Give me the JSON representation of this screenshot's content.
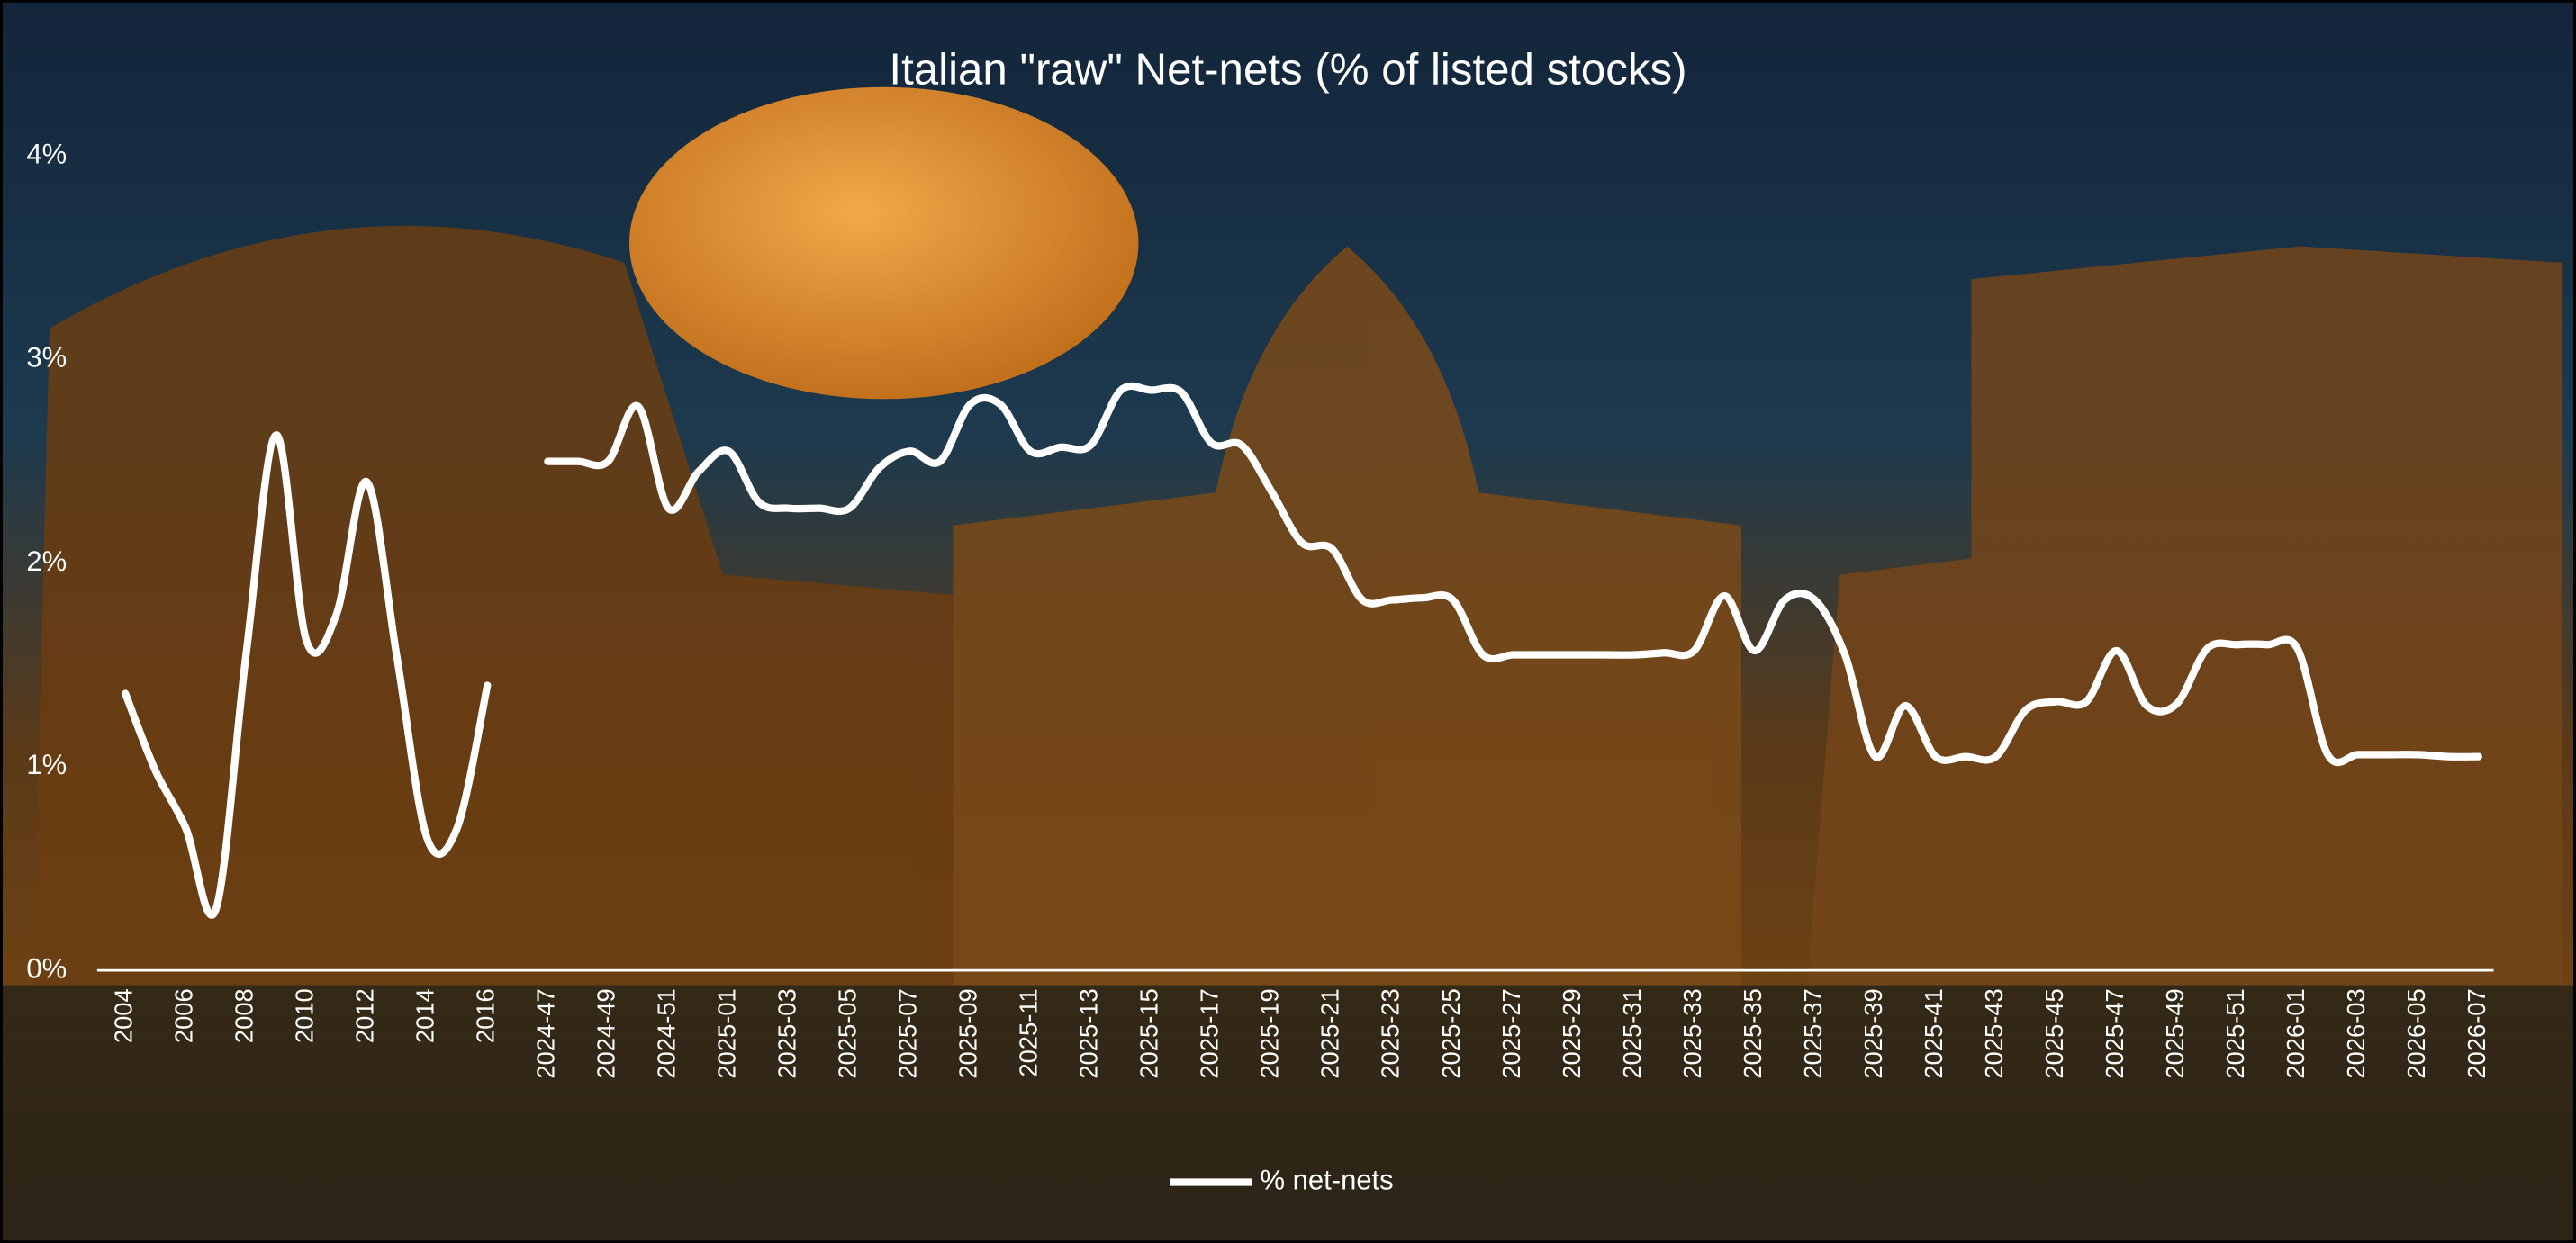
{
  "chart_data": {
    "type": "line",
    "title": "Italian \"raw\" Net-nets (% of listed stocks)",
    "categories": [
      "2004",
      null,
      "2006",
      null,
      "2008",
      null,
      "2010",
      null,
      "2012",
      null,
      "2014",
      null,
      "2016",
      null,
      "2024-47",
      null,
      "2024-49",
      null,
      "2024-51",
      null,
      "2025-01",
      null,
      "2025-03",
      null,
      "2025-05",
      null,
      "2025-07",
      null,
      "2025-09",
      null,
      "2025-11",
      null,
      "2025-13",
      null,
      "2025-15",
      null,
      "2025-17",
      null,
      "2025-19",
      null,
      "2025-21",
      null,
      "2025-23",
      null,
      "2025-25",
      null,
      "2025-27",
      null,
      "2025-29",
      null,
      "2025-31",
      null,
      "2025-33",
      null,
      "2025-35",
      null,
      "2025-37",
      null,
      "2025-39",
      null,
      "2025-41",
      null,
      "2025-43",
      null,
      "2025-45",
      null,
      "2025-47",
      null,
      "2025-49",
      null,
      "2025-51",
      null,
      "2026-01",
      null,
      "2026-03",
      null,
      "2026-05",
      null,
      "2026-07"
    ],
    "series": [
      {
        "name": "% net-nets",
        "color": "#ffffff",
        "values": [
          1.36,
          0.98,
          0.7,
          0.3,
          1.55,
          2.63,
          1.62,
          1.75,
          2.4,
          1.54,
          0.65,
          0.7,
          1.4,
          null,
          2.5,
          2.5,
          2.5,
          2.77,
          2.27,
          2.45,
          2.55,
          2.3,
          2.27,
          2.27,
          2.27,
          2.47,
          2.55,
          2.5,
          2.78,
          2.78,
          2.55,
          2.57,
          2.58,
          2.85,
          2.85,
          2.84,
          2.59,
          2.58,
          2.35,
          2.1,
          2.07,
          1.82,
          1.82,
          1.83,
          1.82,
          1.55,
          1.55,
          1.55,
          1.55,
          1.55,
          1.55,
          1.56,
          1.57,
          1.84,
          1.57,
          1.82,
          1.82,
          1.55,
          1.05,
          1.3,
          1.05,
          1.05,
          1.05,
          1.28,
          1.32,
          1.32,
          1.57,
          1.3,
          1.31,
          1.58,
          1.6,
          1.6,
          1.58,
          1.06,
          1.06,
          1.06,
          1.06,
          1.05,
          1.05
        ]
      }
    ],
    "ylim": [
      0,
      4
    ],
    "yticks": [
      {
        "value": 0,
        "label": "0%"
      },
      {
        "value": 1,
        "label": "1%"
      },
      {
        "value": 2,
        "label": "2%"
      },
      {
        "value": 3,
        "label": "3%"
      },
      {
        "value": 4,
        "label": "4%"
      }
    ],
    "grid": false,
    "legend": "bottom"
  }
}
